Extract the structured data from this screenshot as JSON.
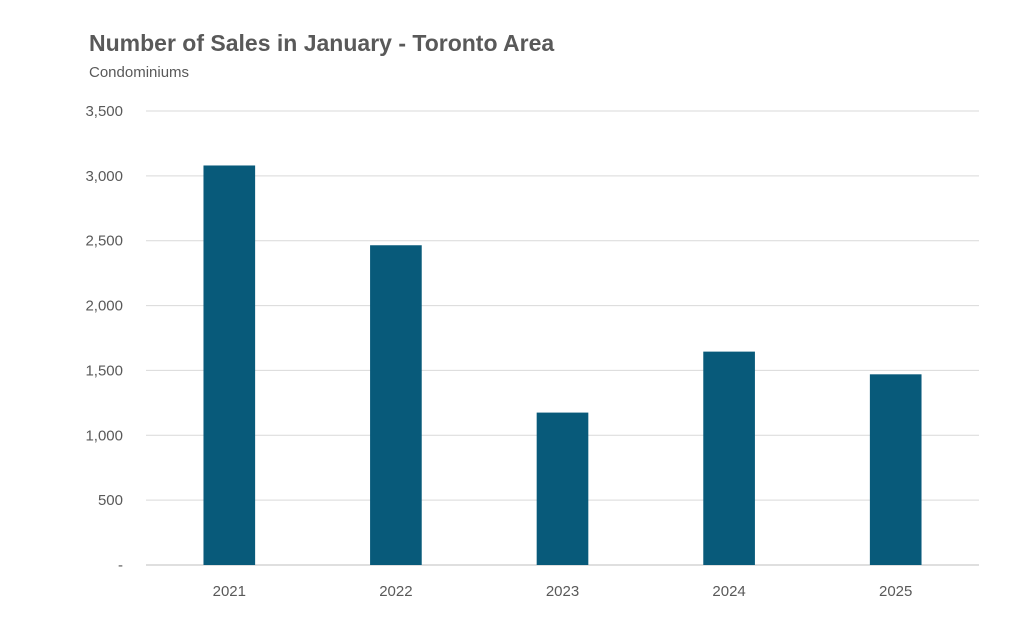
{
  "chart_data": {
    "type": "bar",
    "title": "Number of Sales in January - Toronto Area",
    "subtitle": "Condominiums",
    "xlabel": "",
    "ylabel": "",
    "categories": [
      "2021",
      "2022",
      "2023",
      "2024",
      "2025"
    ],
    "values": [
      3080,
      2465,
      1175,
      1645,
      1470
    ],
    "ylim": [
      0,
      3500
    ],
    "yticks": [
      0,
      500,
      1000,
      1500,
      2000,
      2500,
      3000,
      3500
    ],
    "ytick_labels": [
      "-",
      "500",
      "1,000",
      "1,500",
      "2,000",
      "2,500",
      "3,000",
      "3,500"
    ],
    "grid": true,
    "legend": "none",
    "bar_color": "#085a7a",
    "grid_color": "#d9d9d9",
    "axis_color": "#bfbfbf",
    "text_color": "#595959"
  }
}
